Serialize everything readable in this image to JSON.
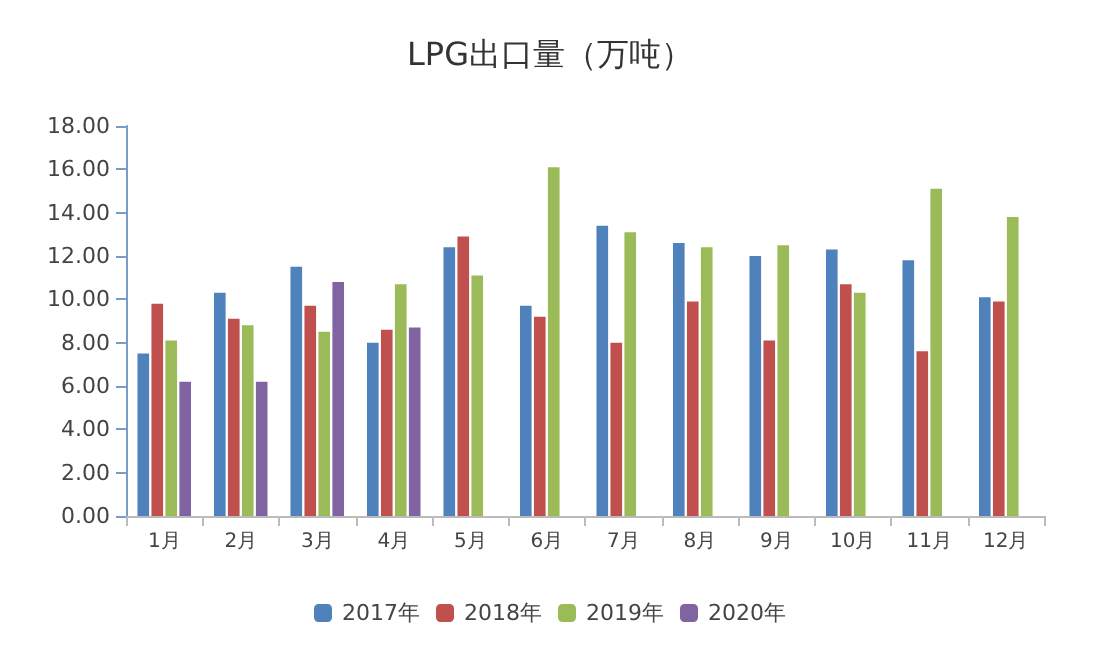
{
  "chart_data": {
    "type": "bar",
    "title": "LPG出口量（万吨）",
    "categories": [
      "1月",
      "2月",
      "3月",
      "4月",
      "5月",
      "6月",
      "7月",
      "8月",
      "9月",
      "10月",
      "11月",
      "12月"
    ],
    "series": [
      {
        "name": "2017年",
        "color": "#4f81bd",
        "values": [
          7.5,
          10.3,
          11.5,
          8.0,
          12.4,
          9.7,
          13.4,
          12.6,
          12.0,
          12.3,
          11.8,
          10.1
        ]
      },
      {
        "name": "2018年",
        "color": "#c0504d",
        "values": [
          9.8,
          9.1,
          9.7,
          8.6,
          12.9,
          9.2,
          8.0,
          9.9,
          8.1,
          10.7,
          7.6,
          9.9
        ]
      },
      {
        "name": "2019年",
        "color": "#9bbb59",
        "values": [
          8.1,
          8.8,
          8.5,
          10.7,
          11.1,
          16.1,
          13.1,
          12.4,
          12.5,
          10.3,
          15.1,
          13.8
        ]
      },
      {
        "name": "2020年",
        "color": "#8064a2",
        "values": [
          6.2,
          6.2,
          10.8,
          8.7,
          null,
          null,
          null,
          null,
          null,
          null,
          null,
          null
        ]
      }
    ],
    "ylim": [
      0,
      18
    ],
    "yticks": [
      {
        "value": 0,
        "label": "0.00"
      },
      {
        "value": 2,
        "label": "2.00"
      },
      {
        "value": 4,
        "label": "4.00"
      },
      {
        "value": 6,
        "label": "6.00"
      },
      {
        "value": 8,
        "label": "8.00"
      },
      {
        "value": 10,
        "label": "10.00"
      },
      {
        "value": 12,
        "label": "12.00"
      },
      {
        "value": 14,
        "label": "14.00"
      },
      {
        "value": 16,
        "label": "16.00"
      },
      {
        "value": 18,
        "label": "18.00"
      }
    ],
    "grid": false,
    "legend": "bottom"
  }
}
